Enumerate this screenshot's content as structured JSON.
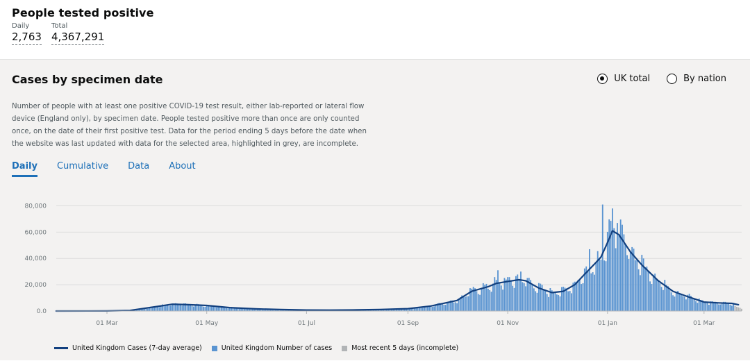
{
  "summary": {
    "title": "People tested positive",
    "daily_label": "Daily",
    "daily_value": "2,763",
    "total_label": "Total",
    "total_value": "4,367,291"
  },
  "card": {
    "title": "Cases by specimen date",
    "radio_uk": "UK total",
    "radio_nation": "By nation",
    "selected": "UK total",
    "description": "Number of people with at least one positive COVID-19 test result, either lab-reported or lateral flow device (England only), by specimen date. People tested positive more than once are only counted once, on the date of their first positive test. Data for the period ending 5 days before the date when the website was last updated with data for the selected area, highlighted in grey, are incomplete.",
    "tabs": [
      "Daily",
      "Cumulative",
      "Data",
      "About"
    ],
    "active_tab": "Daily"
  },
  "chart_data": {
    "type": "bar",
    "y_ticks": [
      "80,000",
      "60,000",
      "40,000",
      "20,000",
      "0.0"
    ],
    "ylim": [
      0,
      85000
    ],
    "x_ticks": [
      "01 Mar",
      "01 May",
      "01 Jul",
      "01 Sep",
      "01 Nov",
      "01 Jan",
      "01 Mar"
    ],
    "x_tick_dates": [
      "2020-03-01",
      "2020-05-01",
      "2020-07-01",
      "2020-09-01",
      "2020-11-01",
      "2021-01-01",
      "2021-03-01"
    ],
    "x_range": [
      "2020-01-30",
      "2021-03-24"
    ],
    "grid": true,
    "colors": {
      "line": "#12407f",
      "bar": "#5a94d1",
      "incomplete": "#b1b4b6"
    },
    "series_points": {
      "name": "United Kingdom Cases (7-day average)",
      "points": [
        [
          "2020-01-30",
          0
        ],
        [
          "2020-03-01",
          30
        ],
        [
          "2020-03-15",
          400
        ],
        [
          "2020-04-01",
          3500
        ],
        [
          "2020-04-10",
          5200
        ],
        [
          "2020-04-20",
          4800
        ],
        [
          "2020-05-01",
          4200
        ],
        [
          "2020-05-15",
          2600
        ],
        [
          "2020-06-01",
          1600
        ],
        [
          "2020-06-15",
          1100
        ],
        [
          "2020-07-01",
          750
        ],
        [
          "2020-07-15",
          700
        ],
        [
          "2020-08-01",
          850
        ],
        [
          "2020-08-15",
          1100
        ],
        [
          "2020-09-01",
          1800
        ],
        [
          "2020-09-15",
          3800
        ],
        [
          "2020-10-01",
          8000
        ],
        [
          "2020-10-10",
          15000
        ],
        [
          "2020-10-20",
          18500
        ],
        [
          "2020-10-25",
          21000
        ],
        [
          "2020-11-01",
          22500
        ],
        [
          "2020-11-08",
          23800
        ],
        [
          "2020-11-12",
          23000
        ],
        [
          "2020-11-20",
          17500
        ],
        [
          "2020-11-28",
          14000
        ],
        [
          "2020-12-05",
          15000
        ],
        [
          "2020-12-12",
          20000
        ],
        [
          "2020-12-18",
          28000
        ],
        [
          "2020-12-25",
          37000
        ],
        [
          "2020-12-28",
          41000
        ],
        [
          "2021-01-01",
          52000
        ],
        [
          "2021-01-04",
          61000
        ],
        [
          "2021-01-08",
          58000
        ],
        [
          "2021-01-15",
          45000
        ],
        [
          "2021-01-22",
          35000
        ],
        [
          "2021-02-01",
          23000
        ],
        [
          "2021-02-10",
          15000
        ],
        [
          "2021-02-20",
          10500
        ],
        [
          "2021-03-01",
          6800
        ],
        [
          "2021-03-10",
          6200
        ],
        [
          "2021-03-18",
          5800
        ],
        [
          "2021-03-22",
          4800
        ]
      ]
    },
    "series_bars": {
      "name": "United Kingdom Number of cases",
      "start": "2020-01-30",
      "end": "2021-03-19",
      "features": [
        {
          "date": "2020-10-26",
          "value": 31000
        },
        {
          "date": "2020-11-09",
          "value": 30000
        },
        {
          "date": "2020-12-21",
          "value": 47000
        },
        {
          "date": "2020-12-29",
          "value": 81000
        },
        {
          "date": "2021-01-04",
          "value": 78000
        },
        {
          "date": "2021-01-05",
          "value": 63000
        },
        {
          "date": "2021-01-07",
          "value": 67000
        }
      ]
    },
    "series_incomplete": {
      "name": "Most recent 5 days (incomplete)",
      "dates": [
        "2021-03-20",
        "2021-03-21",
        "2021-03-22",
        "2021-03-23",
        "2021-03-24"
      ],
      "values": [
        3800,
        3200,
        2800,
        2400,
        1700
      ]
    }
  }
}
